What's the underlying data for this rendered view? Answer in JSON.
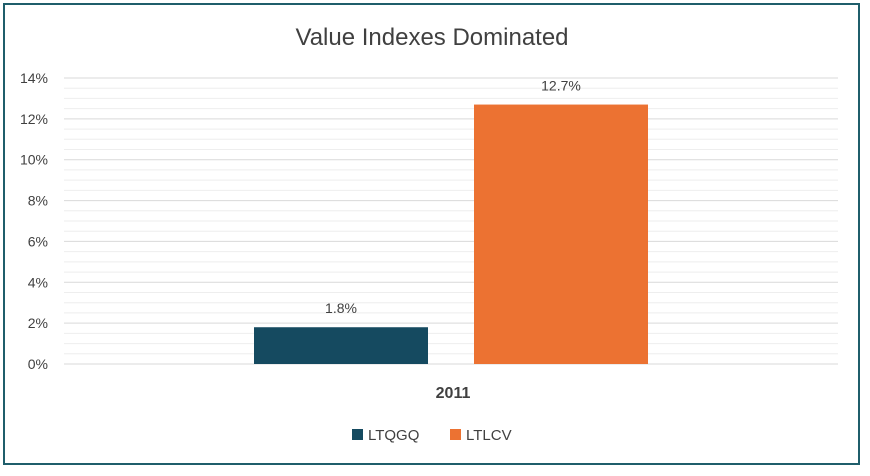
{
  "chart_data": {
    "type": "bar",
    "title": "Value Indexes Dominated",
    "categories": [
      "2011"
    ],
    "series": [
      {
        "name": "LTQGQ",
        "values": [
          1.8
        ],
        "label": "1.8%",
        "color": "#154a60"
      },
      {
        "name": "LTLCV",
        "values": [
          12.7
        ],
        "label": "12.7%",
        "color": "#ec7232"
      }
    ],
    "ylim": [
      0,
      14
    ],
    "yticks": [
      "0%",
      "2%",
      "4%",
      "6%",
      "8%",
      "10%",
      "12%",
      "14%"
    ],
    "grid": true,
    "legend": "bottom"
  }
}
